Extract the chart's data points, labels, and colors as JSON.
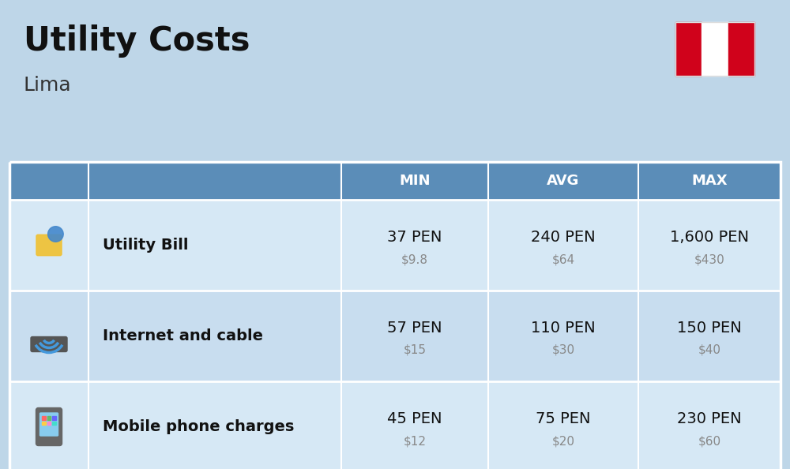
{
  "title": "Utility Costs",
  "subtitle": "Lima",
  "background_color": "#bed6e8",
  "header_bg_color": "#5b8db8",
  "header_text_color": "#ffffff",
  "row_bg_color": "#d6e8f5",
  "row_alt_bg_color": "#c8ddef",
  "table_border_color": "#ffffff",
  "col_headers": [
    "MIN",
    "AVG",
    "MAX"
  ],
  "rows": [
    {
      "label": "Utility Bill",
      "values_pen": [
        "37 PEN",
        "240 PEN",
        "1,600 PEN"
      ],
      "values_usd": [
        "$9.8",
        "$64",
        "$430"
      ]
    },
    {
      "label": "Internet and cable",
      "values_pen": [
        "57 PEN",
        "110 PEN",
        "150 PEN"
      ],
      "values_usd": [
        "$15",
        "$30",
        "$40"
      ]
    },
    {
      "label": "Mobile phone charges",
      "values_pen": [
        "45 PEN",
        "75 PEN",
        "230 PEN"
      ],
      "values_usd": [
        "$12",
        "$20",
        "$60"
      ]
    }
  ],
  "pen_fontsize": 14,
  "usd_fontsize": 11,
  "label_fontsize": 14,
  "header_fontsize": 13,
  "pen_color": "#111111",
  "usd_color": "#888888",
  "label_color": "#111111",
  "flag_red": "#d0021b",
  "flag_white": "#ffffff",
  "title_color": "#111111",
  "subtitle_color": "#333333"
}
